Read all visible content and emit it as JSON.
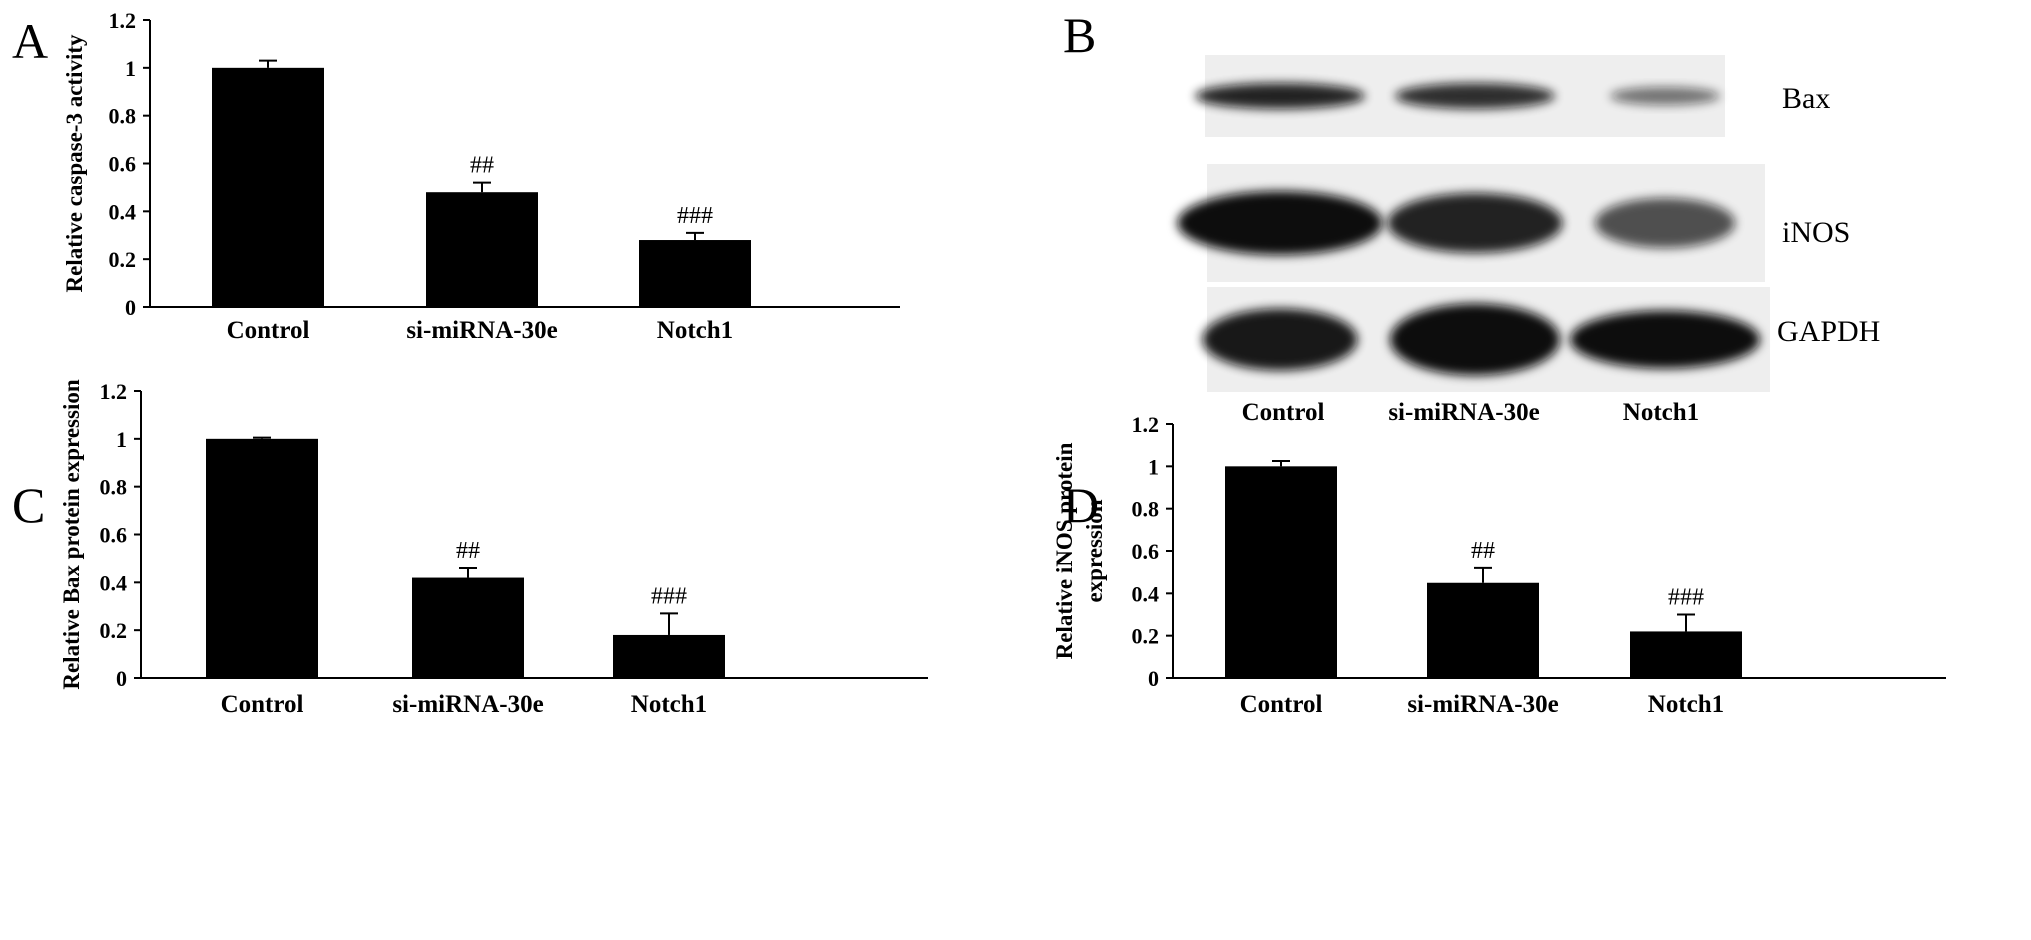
{
  "panels": {
    "A": "A",
    "B": "B",
    "C": "C",
    "D": "D"
  },
  "blot": {
    "rows": [
      {
        "label": "Bax",
        "intensities": [
          0.9,
          0.85,
          0.55
        ]
      },
      {
        "label": "iNOS",
        "intensities": [
          1.0,
          0.9,
          0.7
        ]
      },
      {
        "label": "GAPDH",
        "intensities": [
          0.95,
          1.0,
          1.0
        ]
      }
    ],
    "lanes": [
      "Control",
      "si-miRNA-30e",
      "Notch1"
    ],
    "colors": {
      "band": "#111111",
      "membrane": "#eeeeee"
    }
  },
  "chart_data": [
    {
      "id": "A",
      "type": "bar",
      "categories": [
        "Control",
        "si-miRNA-30e",
        "Notch1"
      ],
      "values": [
        1.0,
        0.48,
        0.28
      ],
      "errors": [
        0.03,
        0.04,
        0.03
      ],
      "significance": [
        "",
        "##",
        "###"
      ],
      "ylabel_lines": [
        "Relative caspase-3 activity"
      ],
      "ylim": [
        0,
        1.2
      ],
      "yticks": [
        "0",
        "0.2",
        "0.4",
        "0.6",
        "0.8",
        "1",
        "1.2"
      ],
      "bar_color": "#000000"
    },
    {
      "id": "C",
      "type": "bar",
      "categories": [
        "Control",
        "si-miRNA-30e",
        "Notch1"
      ],
      "values": [
        1.0,
        0.42,
        0.18
      ],
      "errors": [
        0.005,
        0.04,
        0.09
      ],
      "significance": [
        "",
        "##",
        "###"
      ],
      "ylabel_lines": [
        "Relative Bax protein expression"
      ],
      "ylim": [
        0,
        1.2
      ],
      "yticks": [
        "0",
        "0.2",
        "0.4",
        "0.6",
        "0.8",
        "1",
        "1.2"
      ],
      "bar_color": "#000000"
    },
    {
      "id": "D",
      "type": "bar",
      "categories": [
        "Control",
        "si-miRNA-30e",
        "Notch1"
      ],
      "values": [
        1.0,
        0.45,
        0.22
      ],
      "errors": [
        0.025,
        0.07,
        0.08
      ],
      "significance": [
        "",
        "##",
        "###"
      ],
      "ylabel_lines": [
        "Relative iNOS protein",
        "expression"
      ],
      "ylim": [
        0,
        1.2
      ],
      "yticks": [
        "0",
        "0.2",
        "0.4",
        "0.6",
        "0.8",
        "1",
        "1.2"
      ],
      "bar_color": "#000000"
    }
  ]
}
